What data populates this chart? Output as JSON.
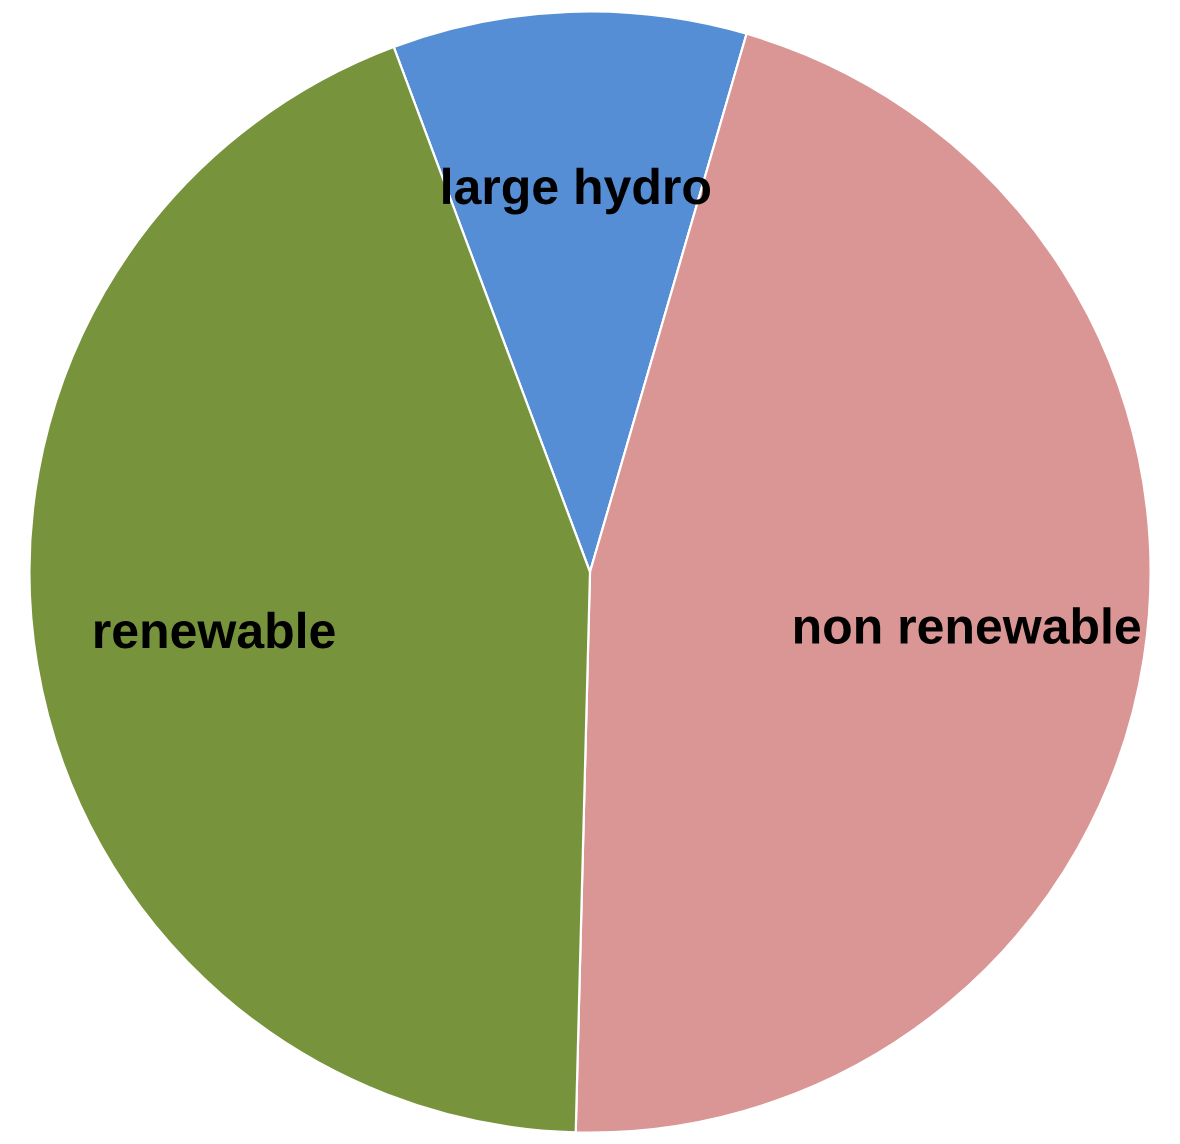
{
  "chart_data": {
    "type": "pie",
    "categories": [
      "large hydro",
      "non renewable",
      "renewable"
    ],
    "values": [
      10.2,
      45.9,
      43.9
    ],
    "colors": [
      "#558ed5",
      "#d99694",
      "#77933c"
    ]
  }
}
